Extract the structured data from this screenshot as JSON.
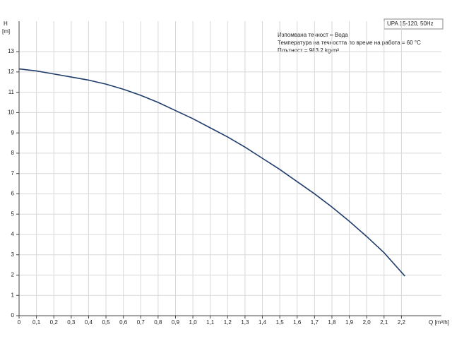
{
  "chart_data": {
    "type": "line",
    "title": "UPA 15-120, 50Hz",
    "annotations": [
      "Изпомвана течност = Вода",
      "Температура на течността по време на работа = 60 °C",
      "Плътност = 983.2 kg/m³"
    ],
    "x_label": "Q [m³/h]",
    "y_label": "H",
    "y_unit": "[m]",
    "x": [
      0,
      0.1,
      0.2,
      0.3,
      0.4,
      0.5,
      0.6,
      0.7,
      0.8,
      0.9,
      1.0,
      1.1,
      1.2,
      1.3,
      1.4,
      1.5,
      1.6,
      1.7,
      1.8,
      1.9,
      2.0,
      2.1,
      2.22
    ],
    "series": [
      {
        "color": "#1f3d6b",
        "values": [
          12.15,
          12.05,
          11.9,
          11.75,
          11.6,
          11.4,
          11.15,
          10.85,
          10.5,
          10.1,
          9.7,
          9.25,
          8.8,
          8.3,
          7.75,
          7.2,
          6.6,
          6.0,
          5.35,
          4.65,
          3.9,
          3.1,
          1.95
        ]
      }
    ],
    "xlim": [
      0,
      2.43
    ],
    "ylim": [
      0,
      14.5
    ],
    "xticks": [
      0,
      {
        "value": 0.1,
        "label": "0,1"
      },
      {
        "value": 0.2,
        "label": "0,2"
      },
      {
        "value": 0.3,
        "label": "0,3"
      },
      {
        "value": 0.4,
        "label": "0,4"
      },
      {
        "value": 0.5,
        "label": "0,5"
      },
      {
        "value": 0.6,
        "label": "0,6"
      },
      {
        "value": 0.7,
        "label": "0,7"
      },
      {
        "value": 0.8,
        "label": "0,8"
      },
      {
        "value": 0.9,
        "label": "0,9"
      },
      {
        "value": 1,
        "label": "1,0"
      },
      {
        "value": 1.1,
        "label": "1,1"
      },
      {
        "value": 1.2,
        "label": "1,2"
      },
      {
        "value": 1.3,
        "label": "1,3"
      },
      {
        "value": 1.4,
        "label": "1,4"
      },
      {
        "value": 1.5,
        "label": "1,5"
      },
      {
        "value": 1.6,
        "label": "1,6"
      },
      {
        "value": 1.7,
        "label": "1,7"
      },
      {
        "value": 1.8,
        "label": "1,8"
      },
      {
        "value": 1.9,
        "label": "1,9"
      },
      {
        "value": 2,
        "label": "2,0"
      },
      {
        "value": 2.1,
        "label": "2,1"
      },
      {
        "value": 2.2,
        "label": "2,2"
      }
    ],
    "yticks": [
      0,
      1,
      2,
      3,
      4,
      5,
      6,
      7,
      8,
      9,
      10,
      11,
      12,
      13
    ],
    "grid": true
  }
}
